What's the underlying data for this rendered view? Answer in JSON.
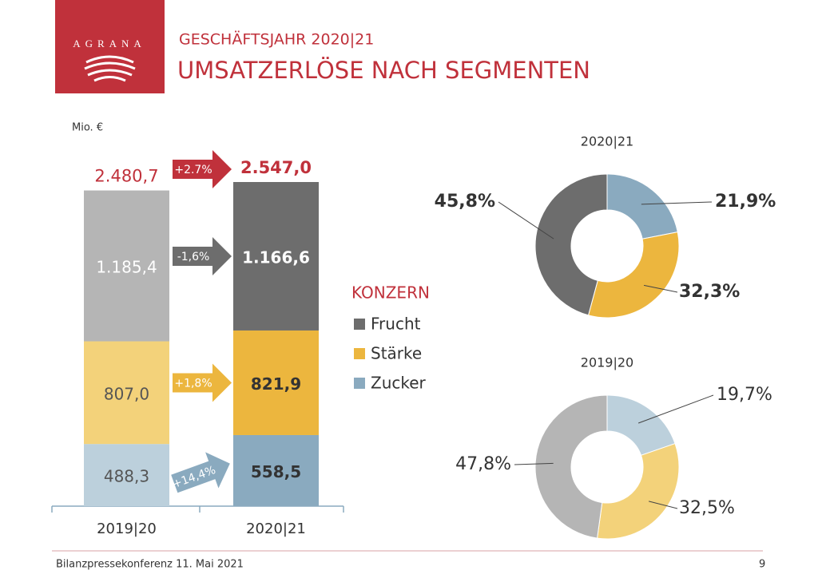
{
  "header": {
    "logo": "AGRANA",
    "subtitle": "GESCHÄFTSJAHR 2020|21",
    "title": "UMSATZERLÖSE NACH SEGMENTEN"
  },
  "footer": {
    "text": "Bilanzpressekonferenz 11. Mai 2021",
    "page": 9
  },
  "chart_data": [
    {
      "type": "stacked-bar",
      "unit": "Mio. €",
      "legend_title": "KONZERN",
      "categories": [
        "2019|20",
        "2020|21"
      ],
      "totals": [
        2480.7,
        2547.0
      ],
      "total_labels": [
        "2.480,7",
        "2.547,0"
      ],
      "total_change": {
        "value": 2.7,
        "label": "+2.7%"
      },
      "series": [
        {
          "name": "Zucker",
          "colors": [
            "#bcd0dc",
            "#8aaabf"
          ],
          "values": [
            488.3,
            558.5
          ],
          "value_labels": [
            "488,3",
            "558,5"
          ],
          "change": {
            "value": 14.4,
            "label": "+14,4%"
          }
        },
        {
          "name": "Stärke",
          "colors": [
            "#f3d27a",
            "#ecb63e"
          ],
          "values": [
            807.0,
            821.9
          ],
          "value_labels": [
            "807,0",
            "821,9"
          ],
          "change": {
            "value": 1.8,
            "label": "+1,8%"
          }
        },
        {
          "name": "Frucht",
          "colors": [
            "#b5b5b5",
            "#6d6d6d"
          ],
          "values": [
            1185.4,
            1166.6
          ],
          "value_labels": [
            "1.185,4",
            "1.166,6"
          ],
          "change": {
            "value": -1.6,
            "label": "-1,6%"
          }
        }
      ]
    },
    {
      "type": "donut",
      "title": "2020|21",
      "categories": [
        "Zucker",
        "Stärke",
        "Frucht"
      ],
      "values": [
        21.9,
        32.3,
        45.8
      ],
      "value_labels": [
        "21,9%",
        "32,3%",
        "45,8%"
      ],
      "colors": [
        "#8aaabf",
        "#ecb63e",
        "#6d6d6d"
      ]
    },
    {
      "type": "donut",
      "title": "2019|20",
      "categories": [
        "Zucker",
        "Stärke",
        "Frucht"
      ],
      "values": [
        19.7,
        32.5,
        47.8
      ],
      "value_labels": [
        "19,7%",
        "32,5%",
        "47,8%"
      ],
      "colors": [
        "#bcd0dc",
        "#f3d27a",
        "#b5b5b5"
      ]
    }
  ]
}
